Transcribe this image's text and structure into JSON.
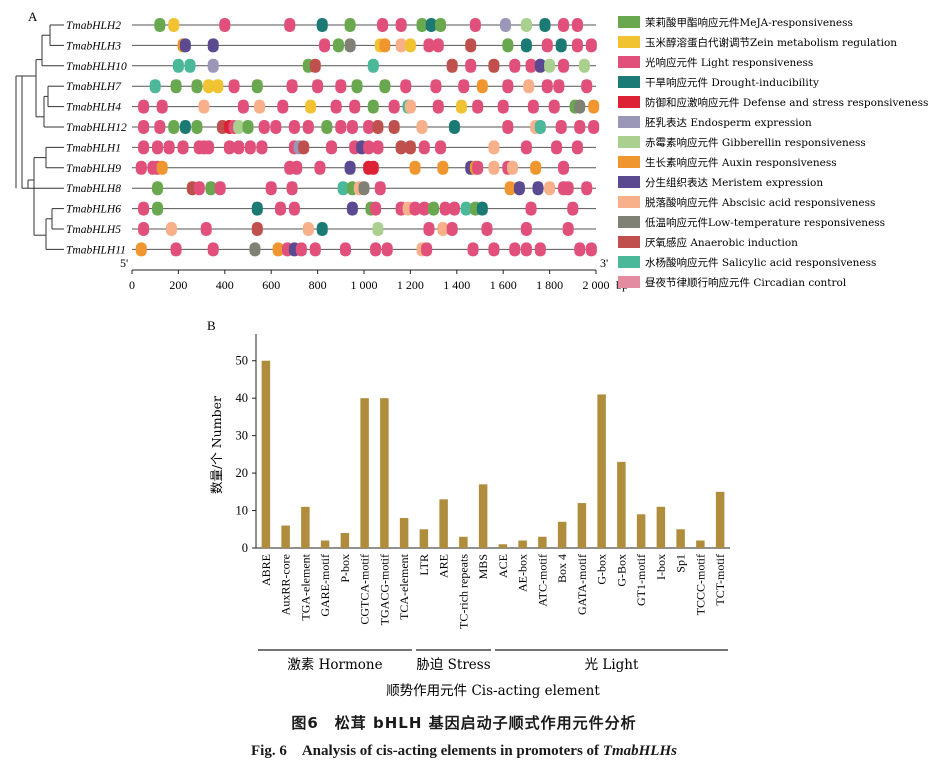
{
  "panel_a": {
    "label": "A",
    "five_prime": "5'",
    "three_prime": "3'",
    "unit": "bp",
    "x_ticks": [
      "0",
      "200",
      "400",
      "600",
      "800",
      "1 000",
      "1 200",
      "1 400",
      "1 600",
      "1 800",
      "2 000"
    ],
    "x_tick_values": [
      0,
      200,
      400,
      600,
      800,
      1000,
      1200,
      1400,
      1600,
      1800,
      2000
    ],
    "genes": [
      "TmabHLH2",
      "TmabHLH3",
      "TmabHLH10",
      "TmabHLH7",
      "TmabHLH4",
      "TmabHLH12",
      "TmabHLH1",
      "TmabHLH9",
      "TmabHLH8",
      "TmabHLH6",
      "TmabHLH5",
      "TmabHLH11"
    ],
    "legend": [
      {
        "key": "meja",
        "label": "茉莉酸甲酯响应元件MeJA-responsiveness",
        "color": "#6aa84f"
      },
      {
        "key": "zein",
        "label": "玉米醇溶蛋白代谢调节Zein metabolism regulation",
        "color": "#f1c232"
      },
      {
        "key": "light",
        "label": "光响应元件 Light responsiveness",
        "color": "#e0507a"
      },
      {
        "key": "drought",
        "label": "干旱响应元件 Drought-inducibility",
        "color": "#1b7a73"
      },
      {
        "key": "defense",
        "label": "防御和应激响应元件 Defense and stress responsiveness",
        "color": "#dd2233"
      },
      {
        "key": "endosperm",
        "label": "胚乳表达 Endosperm expression",
        "color": "#9b97b8"
      },
      {
        "key": "gibberellin",
        "label": "赤霉素响应元件 Gibberellin responsiveness",
        "color": "#a9d08e"
      },
      {
        "key": "auxin",
        "label": "生长素响应元件 Auxin responsiveness",
        "color": "#f0962e"
      },
      {
        "key": "meristem",
        "label": "分生组织表达 Meristem expression",
        "color": "#5b4a8f"
      },
      {
        "key": "abscisic",
        "label": "脱落酸响应元件 Abscisic acid responsiveness",
        "color": "#f7b08a"
      },
      {
        "key": "lowtemp",
        "label": "低温响应元件Low-temperature responsiveness",
        "color": "#7f8174"
      },
      {
        "key": "anaerobic",
        "label": "厌氧感应 Anaerobic induction",
        "color": "#c0504d"
      },
      {
        "key": "salicylic",
        "label": "水杨酸响应元件 Salicylic acid responsiveness",
        "color": "#4cb89a"
      },
      {
        "key": "circadian",
        "label": "昼夜节律顺行响应元件 Circadian control",
        "color": "#e38ca0"
      }
    ],
    "elements": {
      "TmabHLH2": [
        [
          120,
          "meja"
        ],
        [
          180,
          "zein"
        ],
        [
          400,
          "light"
        ],
        [
          680,
          "light"
        ],
        [
          820,
          "drought"
        ],
        [
          940,
          "meja"
        ],
        [
          1080,
          "light"
        ],
        [
          1160,
          "light"
        ],
        [
          1250,
          "meja"
        ],
        [
          1290,
          "drought"
        ],
        [
          1330,
          "meja"
        ],
        [
          1480,
          "light"
        ],
        [
          1610,
          "endosperm"
        ],
        [
          1700,
          "gibberellin"
        ],
        [
          1780,
          "drought"
        ],
        [
          1860,
          "light"
        ],
        [
          1920,
          "light"
        ]
      ],
      "TmabHLH3": [
        [
          220,
          "auxin"
        ],
        [
          230,
          "meristem"
        ],
        [
          350,
          "meristem"
        ],
        [
          830,
          "light"
        ],
        [
          890,
          "meja"
        ],
        [
          940,
          "lowtemp"
        ],
        [
          1070,
          "zein"
        ],
        [
          1090,
          "auxin"
        ],
        [
          1160,
          "abscisic"
        ],
        [
          1200,
          "zein"
        ],
        [
          1280,
          "light"
        ],
        [
          1320,
          "light"
        ],
        [
          1460,
          "anaerobic"
        ],
        [
          1620,
          "meja"
        ],
        [
          1700,
          "drought"
        ],
        [
          1790,
          "light"
        ],
        [
          1850,
          "drought"
        ],
        [
          1920,
          "light"
        ],
        [
          1980,
          "light"
        ]
      ],
      "TmabHLH10": [
        [
          200,
          "salicylic"
        ],
        [
          250,
          "salicylic"
        ],
        [
          350,
          "endosperm"
        ],
        [
          760,
          "meja"
        ],
        [
          790,
          "anaerobic"
        ],
        [
          1040,
          "salicylic"
        ],
        [
          1380,
          "anaerobic"
        ],
        [
          1460,
          "light"
        ],
        [
          1560,
          "anaerobic"
        ],
        [
          1650,
          "light"
        ],
        [
          1720,
          "light"
        ],
        [
          1760,
          "meristem"
        ],
        [
          1800,
          "gibberellin"
        ],
        [
          1860,
          "light"
        ],
        [
          1950,
          "gibberellin"
        ]
      ],
      "TmabHLH7": [
        [
          100,
          "salicylic"
        ],
        [
          190,
          "meja"
        ],
        [
          280,
          "meja"
        ],
        [
          330,
          "zein"
        ],
        [
          370,
          "zein"
        ],
        [
          440,
          "light"
        ],
        [
          540,
          "meja"
        ],
        [
          690,
          "light"
        ],
        [
          800,
          "light"
        ],
        [
          900,
          "light"
        ],
        [
          970,
          "meja"
        ],
        [
          1090,
          "meja"
        ],
        [
          1180,
          "light"
        ],
        [
          1310,
          "light"
        ],
        [
          1430,
          "light"
        ],
        [
          1510,
          "auxin"
        ],
        [
          1620,
          "light"
        ],
        [
          1710,
          "abscisic"
        ],
        [
          1790,
          "light"
        ],
        [
          1840,
          "light"
        ],
        [
          1960,
          "light"
        ]
      ],
      "TmabHLH4": [
        [
          50,
          "light"
        ],
        [
          130,
          "light"
        ],
        [
          310,
          "abscisic"
        ],
        [
          480,
          "light"
        ],
        [
          550,
          "abscisic"
        ],
        [
          650,
          "light"
        ],
        [
          770,
          "zein"
        ],
        [
          880,
          "light"
        ],
        [
          960,
          "light"
        ],
        [
          1040,
          "meja"
        ],
        [
          1130,
          "light"
        ],
        [
          1190,
          "salicylic"
        ],
        [
          1200,
          "abscisic"
        ],
        [
          1320,
          "light"
        ],
        [
          1420,
          "zein"
        ],
        [
          1490,
          "light"
        ],
        [
          1600,
          "light"
        ],
        [
          1730,
          "light"
        ],
        [
          1820,
          "light"
        ],
        [
          1910,
          "meja"
        ],
        [
          1930,
          "lowtemp"
        ],
        [
          1990,
          "auxin"
        ]
      ],
      "TmabHLH12": [
        [
          50,
          "light"
        ],
        [
          120,
          "light"
        ],
        [
          180,
          "meja"
        ],
        [
          230,
          "drought"
        ],
        [
          280,
          "meja"
        ],
        [
          390,
          "anaerobic"
        ],
        [
          420,
          "defense"
        ],
        [
          440,
          "light"
        ],
        [
          460,
          "gibberellin"
        ],
        [
          500,
          "meja"
        ],
        [
          570,
          "light"
        ],
        [
          620,
          "light"
        ],
        [
          700,
          "light"
        ],
        [
          760,
          "light"
        ],
        [
          840,
          "meja"
        ],
        [
          900,
          "light"
        ],
        [
          950,
          "light"
        ],
        [
          1020,
          "light"
        ],
        [
          1060,
          "anaerobic"
        ],
        [
          1130,
          "anaerobic"
        ],
        [
          1250,
          "abscisic"
        ],
        [
          1390,
          "drought"
        ],
        [
          1620,
          "light"
        ],
        [
          1740,
          "abscisic"
        ],
        [
          1760,
          "salicylic"
        ],
        [
          1850,
          "light"
        ],
        [
          1930,
          "light"
        ],
        [
          1990,
          "light"
        ]
      ],
      "TmabHLH1": [
        [
          50,
          "light"
        ],
        [
          110,
          "light"
        ],
        [
          160,
          "light"
        ],
        [
          220,
          "light"
        ],
        [
          290,
          "light"
        ],
        [
          310,
          "light"
        ],
        [
          330,
          "light"
        ],
        [
          420,
          "light"
        ],
        [
          460,
          "light"
        ],
        [
          510,
          "light"
        ],
        [
          560,
          "light"
        ],
        [
          700,
          "light"
        ],
        [
          720,
          "endosperm"
        ],
        [
          740,
          "anaerobic"
        ],
        [
          860,
          "light"
        ],
        [
          960,
          "light"
        ],
        [
          990,
          "meristem"
        ],
        [
          1020,
          "light"
        ],
        [
          1060,
          "light"
        ],
        [
          1160,
          "anaerobic"
        ],
        [
          1200,
          "anaerobic"
        ],
        [
          1260,
          "light"
        ],
        [
          1330,
          "light"
        ],
        [
          1560,
          "abscisic"
        ],
        [
          1700,
          "light"
        ],
        [
          1830,
          "light"
        ],
        [
          1920,
          "light"
        ]
      ],
      "TmabHLH9": [
        [
          40,
          "light"
        ],
        [
          90,
          "light"
        ],
        [
          110,
          "light"
        ],
        [
          130,
          "auxin"
        ],
        [
          680,
          "light"
        ],
        [
          710,
          "light"
        ],
        [
          810,
          "light"
        ],
        [
          940,
          "meristem"
        ],
        [
          1020,
          "defense"
        ],
        [
          1040,
          "defense"
        ],
        [
          1220,
          "auxin"
        ],
        [
          1340,
          "auxin"
        ],
        [
          1460,
          "meristem"
        ],
        [
          1480,
          "auxin"
        ],
        [
          1490,
          "light"
        ],
        [
          1560,
          "abscisic"
        ],
        [
          1620,
          "light"
        ],
        [
          1640,
          "abscisic"
        ],
        [
          1740,
          "auxin"
        ],
        [
          1860,
          "light"
        ]
      ],
      "TmabHLH8": [
        [
          110,
          "meja"
        ],
        [
          260,
          "anaerobic"
        ],
        [
          290,
          "light"
        ],
        [
          340,
          "meja"
        ],
        [
          380,
          "light"
        ],
        [
          600,
          "light"
        ],
        [
          690,
          "light"
        ],
        [
          910,
          "salicylic"
        ],
        [
          950,
          "meja"
        ],
        [
          980,
          "abscisic"
        ],
        [
          1000,
          "lowtemp"
        ],
        [
          1070,
          "light"
        ],
        [
          1630,
          "auxin"
        ],
        [
          1670,
          "meristem"
        ],
        [
          1750,
          "meristem"
        ],
        [
          1800,
          "abscisic"
        ],
        [
          1860,
          "light"
        ],
        [
          1880,
          "light"
        ],
        [
          1960,
          "light"
        ]
      ],
      "TmabHLH6": [
        [
          50,
          "light"
        ],
        [
          110,
          "meja"
        ],
        [
          540,
          "drought"
        ],
        [
          640,
          "light"
        ],
        [
          700,
          "light"
        ],
        [
          950,
          "meristem"
        ],
        [
          1030,
          "meja"
        ],
        [
          1050,
          "light"
        ],
        [
          1160,
          "light"
        ],
        [
          1190,
          "abscisic"
        ],
        [
          1220,
          "light"
        ],
        [
          1260,
          "light"
        ],
        [
          1300,
          "meja"
        ],
        [
          1350,
          "light"
        ],
        [
          1390,
          "light"
        ],
        [
          1440,
          "salicylic"
        ],
        [
          1480,
          "meja"
        ],
        [
          1510,
          "drought"
        ],
        [
          1720,
          "light"
        ],
        [
          1900,
          "light"
        ]
      ],
      "TmabHLH5": [
        [
          50,
          "light"
        ],
        [
          170,
          "abscisic"
        ],
        [
          320,
          "light"
        ],
        [
          540,
          "anaerobic"
        ],
        [
          760,
          "abscisic"
        ],
        [
          820,
          "drought"
        ],
        [
          1060,
          "gibberellin"
        ],
        [
          1280,
          "light"
        ],
        [
          1340,
          "abscisic"
        ],
        [
          1380,
          "light"
        ],
        [
          1530,
          "light"
        ],
        [
          1700,
          "light"
        ],
        [
          1880,
          "light"
        ]
      ],
      "TmabHLH11": [
        [
          40,
          "auxin"
        ],
        [
          190,
          "light"
        ],
        [
          350,
          "light"
        ],
        [
          530,
          "lowtemp"
        ],
        [
          630,
          "auxin"
        ],
        [
          670,
          "light"
        ],
        [
          700,
          "meristem"
        ],
        [
          730,
          "light"
        ],
        [
          790,
          "light"
        ],
        [
          920,
          "light"
        ],
        [
          1050,
          "light"
        ],
        [
          1100,
          "light"
        ],
        [
          1250,
          "abscisic"
        ],
        [
          1270,
          "light"
        ],
        [
          1470,
          "light"
        ],
        [
          1560,
          "light"
        ],
        [
          1650,
          "light"
        ],
        [
          1700,
          "light"
        ],
        [
          1760,
          "light"
        ],
        [
          1930,
          "light"
        ],
        [
          1980,
          "light"
        ]
      ]
    }
  },
  "chart_data": {
    "type": "bar",
    "panel_label": "B",
    "ylabel": "数量/个 Number",
    "xlabel": "顺势作用元件 Cis-acting element",
    "ylim": [
      0,
      55
    ],
    "yticks": [
      0,
      10,
      20,
      30,
      40,
      50
    ],
    "bar_color": "#b08d3c",
    "categories": [
      "ABRE",
      "AuxRR-core",
      "TGA-element",
      "GARE-motif",
      "P-box",
      "CGTCA-motif",
      "TGACG-motif",
      "TCA-element",
      "LTR",
      "ARE",
      "TC-rich repeats",
      "MBS",
      "ACE",
      "AE-box",
      "ATC-motif",
      "Box 4",
      "GATA-motif",
      "G-box",
      "G-Box",
      "GT1-motif",
      "I-box",
      "Sp1",
      "TCCC-motif",
      "TCT-motif"
    ],
    "values": [
      50,
      6,
      11,
      2,
      4,
      40,
      40,
      8,
      5,
      13,
      3,
      17,
      1,
      2,
      3,
      7,
      12,
      41,
      23,
      9,
      11,
      5,
      2,
      15
    ],
    "groups": [
      {
        "label": "激素 Hormone",
        "start": 0,
        "end": 7
      },
      {
        "label": "胁迫 Stress",
        "start": 8,
        "end": 11
      },
      {
        "label": "光 Light",
        "start": 12,
        "end": 23
      }
    ]
  },
  "caption": {
    "zh": "图6　松茸 bHLH 基因启动子顺式作用元件分析",
    "en_prefix": "Fig. 6　Analysis of cis-acting elements in promoters of ",
    "en_italic": "TmabHLHs"
  }
}
